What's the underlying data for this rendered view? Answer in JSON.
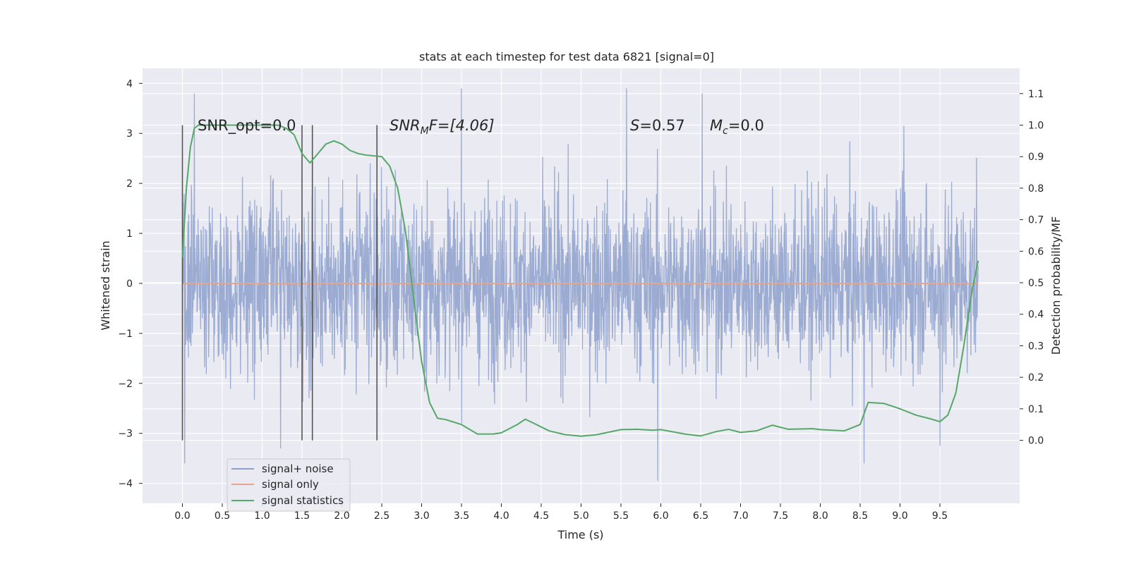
{
  "chart_data": {
    "type": "line",
    "title": "stats at each timestep for test data 6821 [signal=0]",
    "xlabel": "Time (s)",
    "ylabel": "Whitened strain",
    "ylabel_right": "Detection probability/MF",
    "xlim": [
      -0.5,
      10.5
    ],
    "ylim": [
      -4.4,
      4.3
    ],
    "ylim_right": [
      -0.2,
      1.18
    ],
    "x_ticks": [
      "0.0",
      "0.5",
      "1.0",
      "1.5",
      "2.0",
      "2.5",
      "3.0",
      "3.5",
      "4.0",
      "4.5",
      "5.0",
      "5.5",
      "6.0",
      "6.5",
      "7.0",
      "7.5",
      "8.0",
      "8.5",
      "9.0",
      "9.5"
    ],
    "y_ticks": [
      "4",
      "3",
      "2",
      "1",
      "0",
      "−1",
      "−2",
      "−3",
      "−4"
    ],
    "y_ticks_right": [
      "1.1",
      "1.0",
      "0.9",
      "0.8",
      "0.7",
      "0.6",
      "0.5",
      "0.4",
      "0.3",
      "0.2",
      "0.1",
      "0.0"
    ],
    "grid": true,
    "annotations": {
      "snr_opt": "SNR_opt=0.0",
      "snr_mf_sym": "SNR",
      "snr_mf_sub": "M",
      "snr_mf_rest": "F=[4.06]",
      "s_sym": "S",
      "s_rest": "=0.57",
      "mc_sym": "M",
      "mc_sub": "c",
      "mc_rest": "=0.0"
    },
    "vertical_markers_s": [
      0.0,
      1.5,
      1.63,
      2.44
    ],
    "legend": {
      "placement": "lower-left"
    },
    "series": [
      {
        "name": "signal+ noise",
        "color": "#8da0cb",
        "noise_time_range": [
          0.0,
          9.98
        ],
        "noise_amplitude_range": [
          -3.95,
          3.9
        ],
        "peaks": [
          [
            0.15,
            3.8
          ],
          [
            0.03,
            -3.6
          ],
          [
            1.23,
            -3.3
          ],
          [
            3.5,
            3.9
          ],
          [
            5.57,
            3.9
          ],
          [
            5.96,
            -3.95
          ],
          [
            6.52,
            3.8
          ],
          [
            8.55,
            -3.6
          ],
          [
            9.05,
            3.15
          ],
          [
            9.5,
            -3.25
          ]
        ]
      },
      {
        "name": "signal only",
        "color": "#e5a58c",
        "x": [
          0.0,
          9.98
        ],
        "values": [
          0.0,
          0.0
        ]
      },
      {
        "name": "signal statistics",
        "color": "#55a868",
        "axis": "right",
        "x": [
          0.0,
          0.05,
          0.1,
          0.15,
          0.2,
          0.3,
          0.5,
          0.8,
          1.0,
          1.2,
          1.3,
          1.4,
          1.5,
          1.6,
          1.7,
          1.8,
          1.9,
          2.0,
          2.1,
          2.2,
          2.3,
          2.5,
          2.6,
          2.7,
          2.8,
          2.9,
          3.0,
          3.1,
          3.2,
          3.3,
          3.5,
          3.7,
          3.9,
          4.0,
          4.2,
          4.3,
          4.4,
          4.6,
          4.8,
          5.0,
          5.2,
          5.5,
          5.7,
          5.9,
          6.0,
          6.3,
          6.5,
          6.7,
          6.85,
          7.0,
          7.2,
          7.4,
          7.6,
          7.9,
          8.0,
          8.3,
          8.5,
          8.6,
          8.8,
          9.0,
          9.2,
          9.4,
          9.5,
          9.6,
          9.7,
          9.8,
          9.9,
          9.98
        ],
        "values": [
          0.58,
          0.8,
          0.93,
          0.99,
          1.0,
          1.0,
          1.0,
          1.0,
          1.0,
          1.0,
          0.99,
          0.97,
          0.91,
          0.88,
          0.91,
          0.94,
          0.95,
          0.94,
          0.92,
          0.91,
          0.905,
          0.9,
          0.87,
          0.8,
          0.66,
          0.45,
          0.25,
          0.12,
          0.07,
          0.066,
          0.05,
          0.02,
          0.02,
          0.024,
          0.05,
          0.067,
          0.055,
          0.03,
          0.018,
          0.013,
          0.018,
          0.034,
          0.035,
          0.032,
          0.034,
          0.02,
          0.014,
          0.028,
          0.035,
          0.025,
          0.03,
          0.048,
          0.035,
          0.037,
          0.034,
          0.03,
          0.05,
          0.12,
          0.117,
          0.1,
          0.08,
          0.067,
          0.059,
          0.08,
          0.15,
          0.3,
          0.47,
          0.57
        ]
      }
    ]
  }
}
